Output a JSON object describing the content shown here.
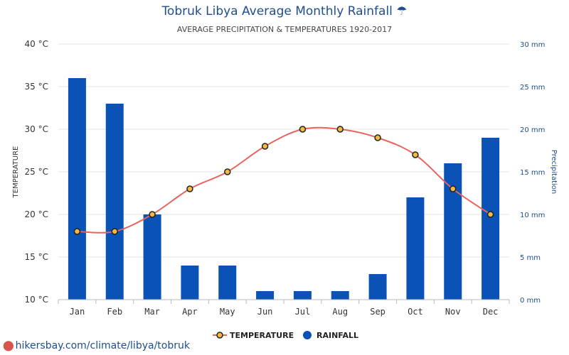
{
  "chart_data": {
    "type": "bar+line",
    "title": "Tobruk Libya Average Monthly Rainfall",
    "title_icon": "umbrella-icon",
    "subtitle": "AVERAGE PRECIPITATION & TEMPERATURES 1920-2017",
    "categories": [
      "Jan",
      "Feb",
      "Mar",
      "Apr",
      "May",
      "Jun",
      "Jul",
      "Aug",
      "Sep",
      "Oct",
      "Nov",
      "Dec"
    ],
    "series": [
      {
        "name": "TEMPERATURE",
        "type": "line",
        "axis": "left",
        "color": "#e8635e",
        "marker_color": "#f5b942",
        "values": [
          18,
          18,
          20,
          23,
          25,
          28,
          30,
          30,
          29,
          27,
          23,
          20
        ]
      },
      {
        "name": "RAINFALL",
        "type": "bar",
        "axis": "right",
        "color": "#0a52b5",
        "values": [
          26,
          23,
          10,
          4,
          4,
          1,
          1,
          1,
          3,
          12,
          16,
          19
        ]
      }
    ],
    "y_left": {
      "label": "TEMPERATURE",
      "range": [
        10,
        40
      ],
      "ticks": [
        "10 °C",
        "15 °C",
        "20 °C",
        "25 °C",
        "30 °C",
        "35 °C",
        "40 °C"
      ]
    },
    "y_right": {
      "label": "Precipitation",
      "range": [
        0,
        30
      ],
      "ticks": [
        "0 mm",
        "5 mm",
        "10 mm",
        "15 mm",
        "20 mm",
        "25 mm",
        "30 mm"
      ]
    },
    "grid": true,
    "legend_position": "bottom-center"
  },
  "credit": {
    "text": "hikersbay.com/climate/libya/tobruk",
    "icon": "location-pin-icon"
  }
}
